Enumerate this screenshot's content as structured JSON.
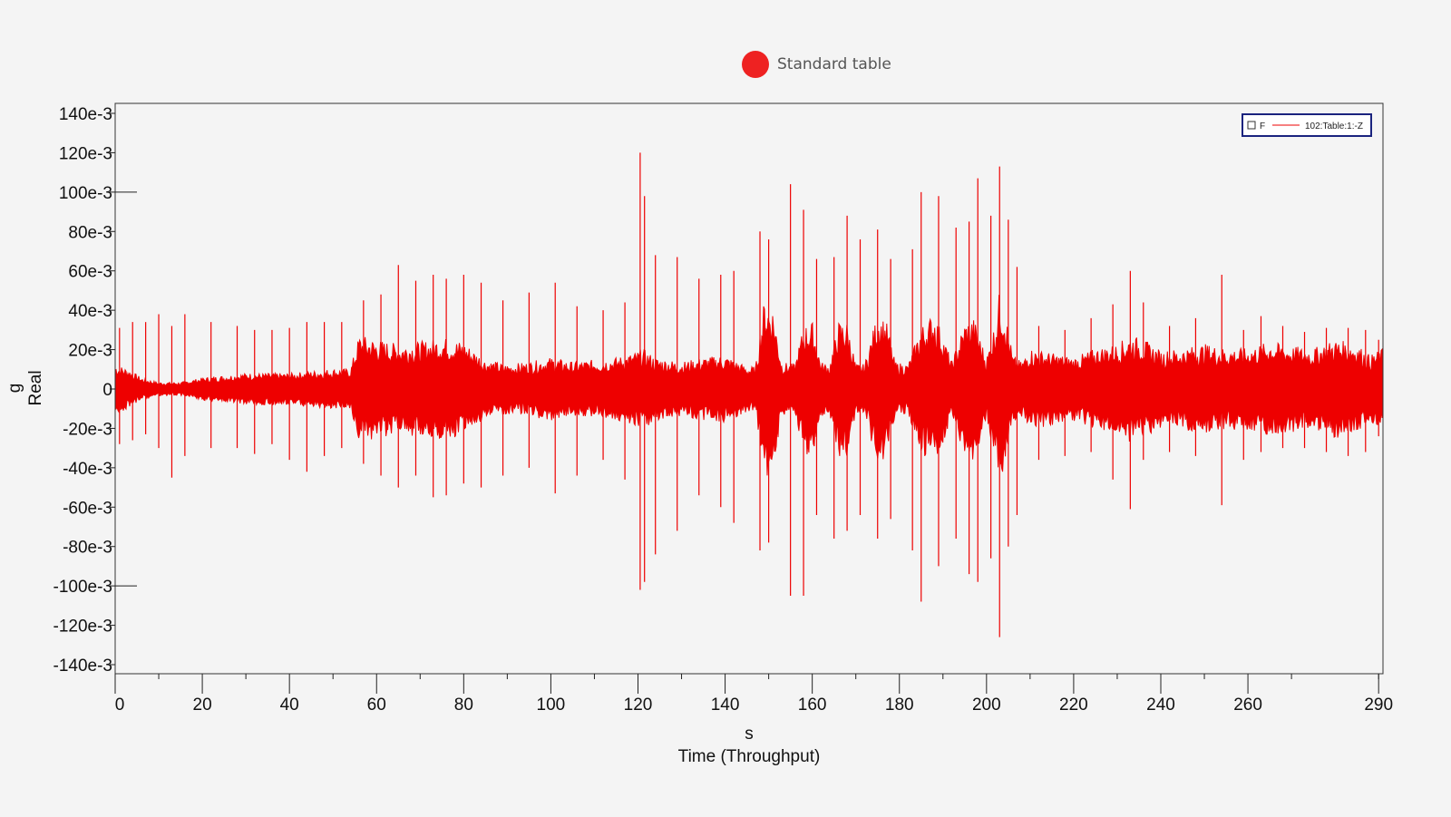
{
  "top_legend": {
    "label": "Standard table",
    "color": "#ee2222"
  },
  "chart_data": {
    "type": "line",
    "title": "",
    "xlabel_unit": "s",
    "xlabel": "Time (Throughput)",
    "ylabel_unit": "g",
    "ylabel": "Real",
    "xlim": [
      0,
      291
    ],
    "ylim": [
      -0.14,
      0.14
    ],
    "x_ticks": [
      0,
      20,
      40,
      60,
      80,
      100,
      120,
      140,
      160,
      180,
      200,
      220,
      240,
      260,
      290
    ],
    "x_tick_labels": [
      "0",
      "20",
      "40",
      "60",
      "80",
      "100",
      "120",
      "140",
      "160",
      "180",
      "200",
      "220",
      "240",
      "260",
      "290"
    ],
    "y_ticks": [
      0.14,
      0.12,
      0.1,
      0.08,
      0.06,
      0.04,
      0.02,
      0,
      -0.02,
      -0.04,
      -0.06,
      -0.08,
      -0.1,
      -0.12,
      -0.14
    ],
    "y_tick_labels": [
      "140e-3",
      "120e-3",
      "100e-3",
      "80e-3",
      "60e-3",
      "40e-3",
      "20e-3",
      "0",
      "-20e-3",
      "-40e-3",
      "-60e-3",
      "-80e-3",
      "-100e-3",
      "-120e-3",
      "-140e-3"
    ],
    "grid": false,
    "series": [
      {
        "name": "102:Table:1:-Z",
        "color": "#ee0000",
        "envelope": {
          "t": [
            0,
            3,
            6,
            10,
            15,
            20,
            30,
            40,
            50,
            54,
            56,
            60,
            65,
            70,
            75,
            80,
            85,
            90,
            95,
            100,
            105,
            110,
            115,
            119,
            121,
            124,
            130,
            135,
            140,
            145,
            147,
            149,
            151,
            153,
            156,
            158,
            160,
            162,
            164,
            166,
            168,
            170,
            172,
            175,
            177,
            179,
            182,
            185,
            188,
            190,
            192,
            195,
            197,
            200,
            202,
            203,
            204,
            206,
            208,
            210,
            215,
            220,
            225,
            230,
            233,
            236,
            240,
            245,
            250,
            255,
            260,
            265,
            270,
            275,
            280,
            285,
            288,
            291
          ],
          "a": [
            0.011,
            0.009,
            0.005,
            0.003,
            0.003,
            0.005,
            0.007,
            0.007,
            0.009,
            0.009,
            0.024,
            0.022,
            0.02,
            0.021,
            0.023,
            0.021,
            0.013,
            0.011,
            0.012,
            0.014,
            0.012,
            0.013,
            0.014,
            0.016,
            0.018,
            0.014,
            0.012,
            0.014,
            0.015,
            0.01,
            0.01,
            0.04,
            0.036,
            0.012,
            0.011,
            0.028,
            0.03,
            0.012,
            0.011,
            0.03,
            0.03,
            0.011,
            0.011,
            0.034,
            0.03,
            0.012,
            0.011,
            0.028,
            0.034,
            0.024,
            0.012,
            0.03,
            0.032,
            0.014,
            0.03,
            0.044,
            0.038,
            0.015,
            0.012,
            0.018,
            0.016,
            0.014,
            0.018,
            0.02,
            0.024,
            0.022,
            0.017,
            0.018,
            0.02,
            0.018,
            0.018,
            0.021,
            0.019,
            0.018,
            0.022,
            0.02,
            0.015,
            0.018
          ]
        },
        "spikes": [
          [
            1,
            0.031,
            -0.028
          ],
          [
            4,
            0.034,
            -0.026
          ],
          [
            7,
            0.034,
            -0.023
          ],
          [
            10,
            0.038,
            -0.03
          ],
          [
            13,
            0.032,
            -0.045
          ],
          [
            16,
            0.038,
            -0.034
          ],
          [
            22,
            0.034,
            -0.03
          ],
          [
            28,
            0.032,
            -0.03
          ],
          [
            32,
            0.03,
            -0.033
          ],
          [
            36,
            0.03,
            -0.028
          ],
          [
            40,
            0.031,
            -0.036
          ],
          [
            44,
            0.034,
            -0.042
          ],
          [
            48,
            0.034,
            -0.034
          ],
          [
            52,
            0.034,
            -0.03
          ],
          [
            57,
            0.045,
            -0.038
          ],
          [
            61,
            0.048,
            -0.044
          ],
          [
            65,
            0.063,
            -0.05
          ],
          [
            69,
            0.055,
            -0.044
          ],
          [
            73,
            0.058,
            -0.055
          ],
          [
            76,
            0.056,
            -0.054
          ],
          [
            80,
            0.058,
            -0.048
          ],
          [
            84,
            0.054,
            -0.05
          ],
          [
            89,
            0.045,
            -0.044
          ],
          [
            95,
            0.049,
            -0.04
          ],
          [
            101,
            0.054,
            -0.053
          ],
          [
            106,
            0.042,
            -0.044
          ],
          [
            112,
            0.04,
            -0.036
          ],
          [
            117,
            0.044,
            -0.046
          ],
          [
            120.5,
            0.12,
            -0.102
          ],
          [
            121.5,
            0.098,
            -0.098
          ],
          [
            124,
            0.068,
            -0.084
          ],
          [
            129,
            0.067,
            -0.072
          ],
          [
            134,
            0.056,
            -0.054
          ],
          [
            139,
            0.058,
            -0.06
          ],
          [
            142,
            0.06,
            -0.068
          ],
          [
            148,
            0.08,
            -0.082
          ],
          [
            150,
            0.076,
            -0.078
          ],
          [
            155,
            0.104,
            -0.105
          ],
          [
            158,
            0.091,
            -0.105
          ],
          [
            161,
            0.066,
            -0.064
          ],
          [
            165,
            0.067,
            -0.076
          ],
          [
            168,
            0.088,
            -0.072
          ],
          [
            171,
            0.076,
            -0.064
          ],
          [
            175,
            0.081,
            -0.076
          ],
          [
            178,
            0.066,
            -0.066
          ],
          [
            183,
            0.071,
            -0.082
          ],
          [
            185,
            0.1,
            -0.108
          ],
          [
            189,
            0.098,
            -0.09
          ],
          [
            193,
            0.082,
            -0.076
          ],
          [
            196,
            0.085,
            -0.094
          ],
          [
            198,
            0.107,
            -0.098
          ],
          [
            201,
            0.088,
            -0.086
          ],
          [
            203,
            0.113,
            -0.126
          ],
          [
            205,
            0.086,
            -0.08
          ],
          [
            207,
            0.062,
            -0.064
          ],
          [
            212,
            0.032,
            -0.036
          ],
          [
            218,
            0.03,
            -0.034
          ],
          [
            224,
            0.036,
            -0.032
          ],
          [
            229,
            0.043,
            -0.046
          ],
          [
            233,
            0.06,
            -0.061
          ],
          [
            236,
            0.044,
            -0.036
          ],
          [
            242,
            0.032,
            -0.032
          ],
          [
            248,
            0.036,
            -0.034
          ],
          [
            254,
            0.058,
            -0.059
          ],
          [
            259,
            0.03,
            -0.036
          ],
          [
            263,
            0.037,
            -0.032
          ],
          [
            268,
            0.032,
            -0.03
          ],
          [
            273,
            0.029,
            -0.03
          ],
          [
            278,
            0.031,
            -0.032
          ],
          [
            283,
            0.031,
            -0.034
          ],
          [
            287,
            0.03,
            -0.032
          ],
          [
            290,
            0.025,
            -0.024
          ]
        ]
      }
    ],
    "inset_legend": {
      "checkbox_label": "F",
      "entry": "102:Table:1:-Z"
    }
  }
}
